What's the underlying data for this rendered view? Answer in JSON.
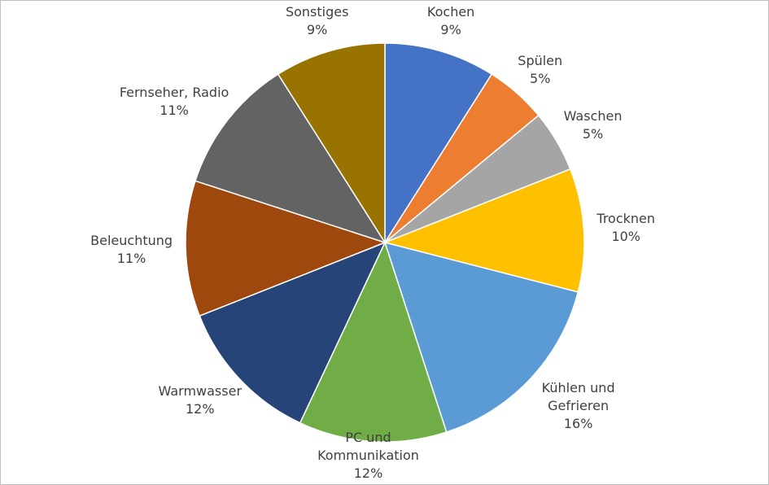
{
  "chart_data": {
    "type": "pie",
    "categories": [
      "Kochen",
      "Spülen",
      "Waschen",
      "Trocknen",
      "Kühlen und Gefrieren",
      "PC und Kommunikation",
      "Warmwasser",
      "Beleuchtung",
      "Fernseher, Radio",
      "Sonstiges"
    ],
    "values": [
      9,
      5,
      5,
      10,
      16,
      12,
      12,
      11,
      11,
      9
    ],
    "value_labels": [
      "9%",
      "5%",
      "5%",
      "10%",
      "16%",
      "12%",
      "12%",
      "11%",
      "11%",
      "9%"
    ],
    "colors": [
      "#4472c4",
      "#ed7d31",
      "#a5a5a5",
      "#ffc000",
      "#5b9bd5",
      "#70ad47",
      "#264478",
      "#9e480e",
      "#636363",
      "#997300"
    ]
  }
}
